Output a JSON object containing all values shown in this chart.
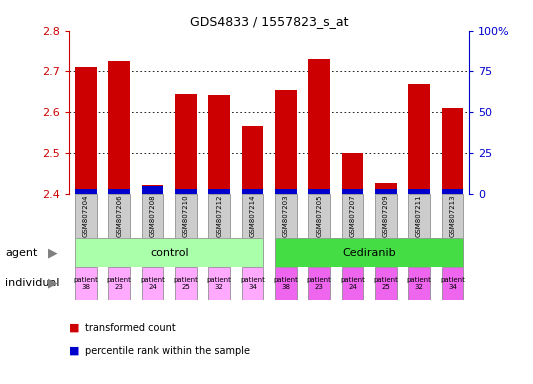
{
  "title": "GDS4833 / 1557823_s_at",
  "samples": [
    "GSM807204",
    "GSM807206",
    "GSM807208",
    "GSM807210",
    "GSM807212",
    "GSM807214",
    "GSM807203",
    "GSM807205",
    "GSM807207",
    "GSM807209",
    "GSM807211",
    "GSM807213"
  ],
  "red_values": [
    2.71,
    2.725,
    2.42,
    2.645,
    2.643,
    2.565,
    2.655,
    2.73,
    2.5,
    2.425,
    2.67,
    2.61
  ],
  "blue_values": [
    0.012,
    0.012,
    0.018,
    0.012,
    0.012,
    0.012,
    0.012,
    0.012,
    0.012,
    0.012,
    0.012,
    0.012
  ],
  "ymin": 2.4,
  "ymax": 2.8,
  "yticks": [
    2.4,
    2.5,
    2.6,
    2.7,
    2.8
  ],
  "right_yticks": [
    0,
    25,
    50,
    75,
    100
  ],
  "right_yticklabels": [
    "0",
    "25",
    "50",
    "75",
    "100%"
  ],
  "patients": [
    "patient\n38",
    "patient\n23",
    "patient\n24",
    "patient\n25",
    "patient\n32",
    "patient\n34",
    "patient\n38",
    "patient\n23",
    "patient\n24",
    "patient\n25",
    "patient\n32",
    "patient\n34"
  ],
  "agent_bg_control": "#aaffaa",
  "agent_bg_cediranib": "#44dd44",
  "individual_bg_control": "#ffaaff",
  "individual_bg_cediranib": "#ee66ee",
  "gsm_bg": "#cccccc",
  "bar_width": 0.65,
  "red_color": "#cc0000",
  "blue_color": "#0000cc",
  "tick_label_color_left": "#cc0000",
  "tick_label_color_right": "#0000cc",
  "grid_color": "#000000",
  "fig_width": 5.33,
  "fig_height": 3.84,
  "dpi": 100
}
